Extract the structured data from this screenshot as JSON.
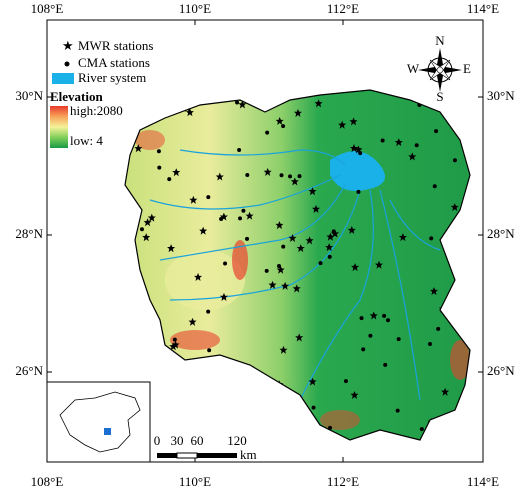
{
  "axes": {
    "top": [
      "108°E",
      "110°E",
      "112°E",
      "114°E"
    ],
    "bottom": [
      "108°E",
      "110°E",
      "112°E",
      "114°E"
    ],
    "left": [
      "30°N",
      "28°N",
      "26°N"
    ],
    "right": [
      "30°N",
      "28°N",
      "26°N"
    ]
  },
  "legend": {
    "items": [
      "MWR stations",
      "CMA stations",
      "River system"
    ],
    "elevation": {
      "title": "Elevation",
      "high": "high:2080",
      "low": "low: 4"
    }
  },
  "compass": {
    "n": "N",
    "s": "S",
    "e": "E",
    "w": "W"
  },
  "scale_bar": {
    "ticks": [
      "0",
      "30",
      "60",
      "120"
    ],
    "unit": "km"
  }
}
